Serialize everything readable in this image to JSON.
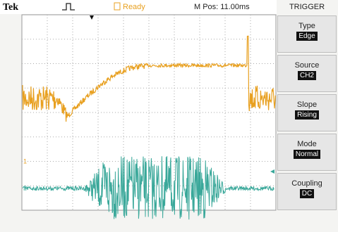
{
  "header": {
    "brand": "Tek",
    "status": "Ready",
    "position": "M Pos: 11.00ms",
    "menu_title": "TRIGGER"
  },
  "channels": [
    "1",
    "2"
  ],
  "menu": [
    {
      "label": "Type",
      "value": "Edge"
    },
    {
      "label": "Source",
      "value": "CH2"
    },
    {
      "label": "Slope",
      "value": "Rising"
    },
    {
      "label": "Mode",
      "value": "Normal"
    },
    {
      "label": "Coupling",
      "value": "DC"
    }
  ]
}
